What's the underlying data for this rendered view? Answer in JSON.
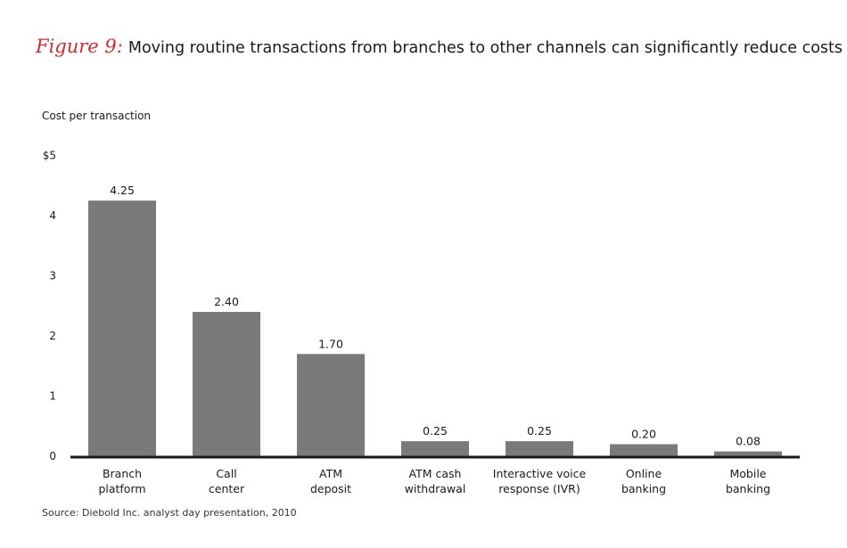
{
  "title": {
    "figure_label": "Figure 9:",
    "text": "Moving routine transactions from branches to other channels can significantly reduce costs"
  },
  "source": "Source: Diebold Inc. analyst day presentation, 2010",
  "colors": {
    "bar": "#7a7a7c",
    "figure_label": "#d7282f",
    "axis": "#1a1a1a"
  },
  "chart_data": {
    "type": "bar",
    "title": "",
    "ylabel": "Cost per transaction",
    "xlabel": "",
    "ylim": [
      0,
      5
    ],
    "yticks": [
      {
        "value": 0,
        "label": "0"
      },
      {
        "value": 1,
        "label": "1"
      },
      {
        "value": 2,
        "label": "2"
      },
      {
        "value": 3,
        "label": "3"
      },
      {
        "value": 4,
        "label": "4"
      },
      {
        "value": 5,
        "label": "$5"
      }
    ],
    "categories": [
      [
        "Branch",
        "platform"
      ],
      [
        "Call",
        "center"
      ],
      [
        "ATM",
        "deposit"
      ],
      [
        "ATM cash",
        "withdrawal"
      ],
      [
        "Interactive voice",
        "response (IVR)"
      ],
      [
        "Online",
        "banking"
      ],
      [
        "Mobile",
        "banking"
      ]
    ],
    "values": [
      4.25,
      2.4,
      1.7,
      0.25,
      0.25,
      0.2,
      0.08
    ],
    "value_labels": [
      "4.25",
      "2.40",
      "1.70",
      "0.25",
      "0.25",
      "0.20",
      "0.08"
    ],
    "grid": false,
    "legend": "none"
  }
}
